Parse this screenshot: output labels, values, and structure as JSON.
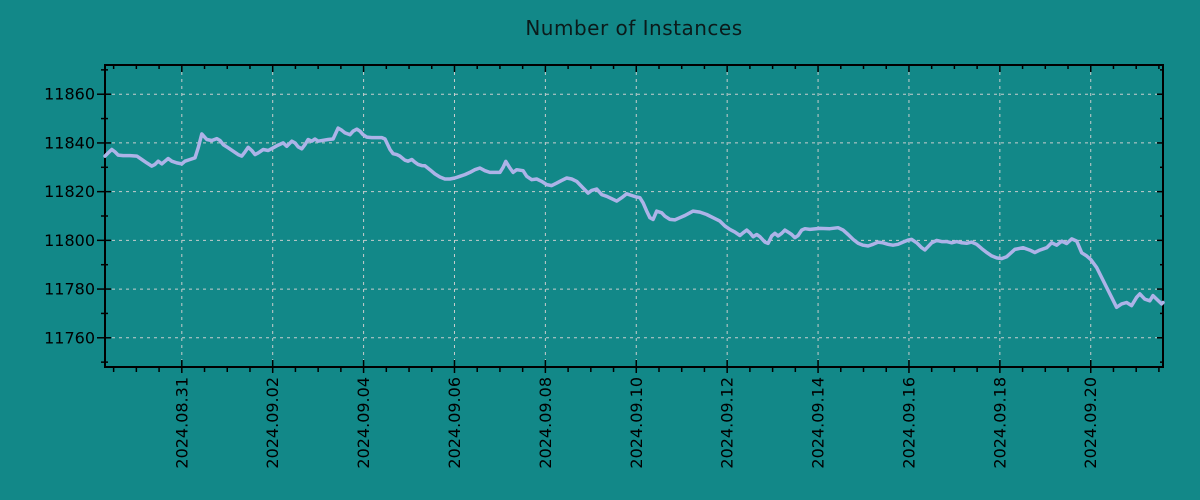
{
  "colors": {
    "background": "#128888",
    "line": "#adb3e8",
    "grid": "#c8cdcd",
    "frame": "#000000",
    "title_text": "#0b1b1b",
    "tick_text": "#000000"
  },
  "chart_data": {
    "type": "line",
    "title": "Number of Instances",
    "grid": {
      "dashed": true,
      "legend": "none"
    },
    "x_axis": {
      "tick_labels": [
        "2024.08.31",
        "2024.09.02",
        "2024.09.04",
        "2024.09.06",
        "2024.09.08",
        "2024.09.10",
        "2024.09.12",
        "2024.09.14",
        "2024.09.16",
        "2024.09.18",
        "2024.09.20"
      ],
      "tick_positions": [
        1.69,
        3.69,
        5.69,
        7.69,
        9.69,
        11.69,
        13.69,
        15.69,
        17.69,
        19.69,
        21.69
      ],
      "minor_tick_start": 0.19,
      "minor_tick_step": 0.5,
      "domain": [
        0,
        23.28
      ]
    },
    "y_axis": {
      "tick_values": [
        11760,
        11780,
        11800,
        11820,
        11840,
        11860
      ],
      "minor_tick_step": 10,
      "domain": [
        11748,
        11872
      ]
    },
    "series": [
      {
        "name": "instances",
        "points": [
          [
            0.0,
            11834.6
          ],
          [
            0.07,
            11835.9
          ],
          [
            0.15,
            11837.3
          ],
          [
            0.22,
            11836.3
          ],
          [
            0.29,
            11835.0
          ],
          [
            0.4,
            11834.8
          ],
          [
            0.55,
            11834.8
          ],
          [
            0.7,
            11834.6
          ],
          [
            0.81,
            11833.2
          ],
          [
            0.92,
            11831.8
          ],
          [
            1.03,
            11830.5
          ],
          [
            1.1,
            11831.2
          ],
          [
            1.17,
            11832.5
          ],
          [
            1.25,
            11831.4
          ],
          [
            1.32,
            11832.5
          ],
          [
            1.39,
            11833.6
          ],
          [
            1.47,
            11832.5
          ],
          [
            1.58,
            11831.8
          ],
          [
            1.69,
            11831.4
          ],
          [
            1.76,
            11832.5
          ],
          [
            1.87,
            11833.2
          ],
          [
            1.98,
            11833.9
          ],
          [
            2.05,
            11838.0
          ],
          [
            2.13,
            11843.7
          ],
          [
            2.24,
            11841.4
          ],
          [
            2.35,
            11841.0
          ],
          [
            2.46,
            11841.8
          ],
          [
            2.53,
            11841.0
          ],
          [
            2.6,
            11839.3
          ],
          [
            2.71,
            11838.0
          ],
          [
            2.82,
            11836.6
          ],
          [
            2.93,
            11835.2
          ],
          [
            3.01,
            11834.6
          ],
          [
            3.08,
            11836.3
          ],
          [
            3.15,
            11838.2
          ],
          [
            3.23,
            11836.9
          ],
          [
            3.3,
            11835.2
          ],
          [
            3.37,
            11835.9
          ],
          [
            3.48,
            11837.3
          ],
          [
            3.59,
            11836.9
          ],
          [
            3.7,
            11838.0
          ],
          [
            3.81,
            11839.1
          ],
          [
            3.92,
            11840.0
          ],
          [
            4.0,
            11838.6
          ],
          [
            4.11,
            11840.7
          ],
          [
            4.18,
            11840.0
          ],
          [
            4.25,
            11838.4
          ],
          [
            4.33,
            11837.6
          ],
          [
            4.4,
            11839.3
          ],
          [
            4.47,
            11841.4
          ],
          [
            4.55,
            11840.7
          ],
          [
            4.62,
            11841.6
          ],
          [
            4.69,
            11840.7
          ],
          [
            4.8,
            11841.1
          ],
          [
            4.91,
            11841.4
          ],
          [
            5.02,
            11841.6
          ],
          [
            5.13,
            11846.1
          ],
          [
            5.21,
            11845.2
          ],
          [
            5.28,
            11844.1
          ],
          [
            5.39,
            11843.4
          ],
          [
            5.46,
            11844.8
          ],
          [
            5.54,
            11845.7
          ],
          [
            5.61,
            11844.8
          ],
          [
            5.68,
            11843.4
          ],
          [
            5.76,
            11842.4
          ],
          [
            5.87,
            11842.2
          ],
          [
            5.98,
            11842.2
          ],
          [
            6.09,
            11842.2
          ],
          [
            6.16,
            11841.6
          ],
          [
            6.27,
            11837.3
          ],
          [
            6.34,
            11835.6
          ],
          [
            6.42,
            11835.2
          ],
          [
            6.49,
            11834.6
          ],
          [
            6.6,
            11832.9
          ],
          [
            6.67,
            11832.5
          ],
          [
            6.75,
            11833.2
          ],
          [
            6.82,
            11832.1
          ],
          [
            6.89,
            11831.2
          ],
          [
            6.97,
            11830.7
          ],
          [
            7.04,
            11830.6
          ],
          [
            7.15,
            11829.0
          ],
          [
            7.26,
            11827.3
          ],
          [
            7.37,
            11826.0
          ],
          [
            7.48,
            11825.2
          ],
          [
            7.59,
            11825.2
          ],
          [
            7.7,
            11825.6
          ],
          [
            7.81,
            11826.3
          ],
          [
            7.92,
            11827.0
          ],
          [
            8.03,
            11827.9
          ],
          [
            8.14,
            11829.0
          ],
          [
            8.25,
            11829.7
          ],
          [
            8.36,
            11828.6
          ],
          [
            8.47,
            11827.9
          ],
          [
            8.58,
            11827.9
          ],
          [
            8.69,
            11827.9
          ],
          [
            8.76,
            11830.0
          ],
          [
            8.82,
            11832.4
          ],
          [
            8.91,
            11829.7
          ],
          [
            8.98,
            11827.9
          ],
          [
            9.06,
            11829.0
          ],
          [
            9.13,
            11828.8
          ],
          [
            9.2,
            11828.6
          ],
          [
            9.28,
            11826.3
          ],
          [
            9.39,
            11824.9
          ],
          [
            9.5,
            11825.2
          ],
          [
            9.61,
            11824.2
          ],
          [
            9.72,
            11822.9
          ],
          [
            9.83,
            11822.5
          ],
          [
            9.94,
            11823.5
          ],
          [
            10.05,
            11824.6
          ],
          [
            10.16,
            11825.6
          ],
          [
            10.27,
            11825.2
          ],
          [
            10.38,
            11824.2
          ],
          [
            10.52,
            11821.5
          ],
          [
            10.63,
            11819.4
          ],
          [
            10.71,
            11820.5
          ],
          [
            10.82,
            11821.1
          ],
          [
            10.93,
            11818.8
          ],
          [
            11.04,
            11818.1
          ],
          [
            11.15,
            11817.1
          ],
          [
            11.26,
            11816.1
          ],
          [
            11.37,
            11817.5
          ],
          [
            11.48,
            11819.1
          ],
          [
            11.59,
            11818.4
          ],
          [
            11.68,
            11817.9
          ],
          [
            11.77,
            11817.5
          ],
          [
            11.84,
            11815.4
          ],
          [
            11.92,
            11812.0
          ],
          [
            11.99,
            11809.3
          ],
          [
            12.06,
            11808.6
          ],
          [
            12.14,
            11812.0
          ],
          [
            12.25,
            11811.3
          ],
          [
            12.32,
            11809.9
          ],
          [
            12.43,
            11808.6
          ],
          [
            12.54,
            11808.4
          ],
          [
            12.65,
            11809.3
          ],
          [
            12.76,
            11810.2
          ],
          [
            12.87,
            11811.3
          ],
          [
            12.94,
            11812.0
          ],
          [
            13.09,
            11811.6
          ],
          [
            13.24,
            11810.6
          ],
          [
            13.38,
            11809.3
          ],
          [
            13.53,
            11807.9
          ],
          [
            13.64,
            11805.9
          ],
          [
            13.75,
            11804.5
          ],
          [
            13.86,
            11803.4
          ],
          [
            13.97,
            11802.0
          ],
          [
            14.04,
            11803.1
          ],
          [
            14.12,
            11804.2
          ],
          [
            14.19,
            11803.1
          ],
          [
            14.26,
            11801.5
          ],
          [
            14.34,
            11802.4
          ],
          [
            14.41,
            11801.5
          ],
          [
            14.52,
            11799.3
          ],
          [
            14.59,
            11798.8
          ],
          [
            14.67,
            11801.8
          ],
          [
            14.74,
            11802.9
          ],
          [
            14.81,
            11801.8
          ],
          [
            14.89,
            11802.9
          ],
          [
            14.96,
            11804.2
          ],
          [
            15.03,
            11803.4
          ],
          [
            15.11,
            11802.4
          ],
          [
            15.18,
            11801.1
          ],
          [
            15.25,
            11802.0
          ],
          [
            15.33,
            11804.2
          ],
          [
            15.4,
            11804.8
          ],
          [
            15.51,
            11804.5
          ],
          [
            15.73,
            11804.9
          ],
          [
            15.95,
            11804.8
          ],
          [
            16.13,
            11805.2
          ],
          [
            16.24,
            11804.2
          ],
          [
            16.35,
            11802.4
          ],
          [
            16.46,
            11800.4
          ],
          [
            16.57,
            11798.8
          ],
          [
            16.68,
            11798.0
          ],
          [
            16.79,
            11797.7
          ],
          [
            16.9,
            11798.4
          ],
          [
            17.01,
            11799.3
          ],
          [
            17.12,
            11799.0
          ],
          [
            17.23,
            11798.4
          ],
          [
            17.34,
            11798.0
          ],
          [
            17.45,
            11798.4
          ],
          [
            17.56,
            11799.3
          ],
          [
            17.67,
            11800.1
          ],
          [
            17.75,
            11800.4
          ],
          [
            17.86,
            11799.0
          ],
          [
            17.97,
            11797.0
          ],
          [
            18.04,
            11796.1
          ],
          [
            18.11,
            11797.4
          ],
          [
            18.19,
            11799.0
          ],
          [
            18.3,
            11800.0
          ],
          [
            18.41,
            11799.5
          ],
          [
            18.52,
            11799.5
          ],
          [
            18.63,
            11799.0
          ],
          [
            18.74,
            11799.5
          ],
          [
            18.85,
            11799.0
          ],
          [
            18.96,
            11798.8
          ],
          [
            19.07,
            11799.3
          ],
          [
            19.18,
            11798.4
          ],
          [
            19.29,
            11796.6
          ],
          [
            19.4,
            11795.0
          ],
          [
            19.51,
            11793.6
          ],
          [
            19.62,
            11792.8
          ],
          [
            19.73,
            11792.5
          ],
          [
            19.84,
            11793.3
          ],
          [
            20.02,
            11796.3
          ],
          [
            20.2,
            11797.0
          ],
          [
            20.35,
            11796.0
          ],
          [
            20.46,
            11795.0
          ],
          [
            20.57,
            11796.0
          ],
          [
            20.72,
            11797.0
          ],
          [
            20.83,
            11799.0
          ],
          [
            20.94,
            11798.0
          ],
          [
            21.05,
            11799.7
          ],
          [
            21.16,
            11798.7
          ],
          [
            21.27,
            11800.6
          ],
          [
            21.38,
            11799.7
          ],
          [
            21.49,
            11794.9
          ],
          [
            21.6,
            11793.6
          ],
          [
            21.69,
            11792.2
          ],
          [
            21.82,
            11788.9
          ],
          [
            21.93,
            11784.8
          ],
          [
            22.04,
            11780.7
          ],
          [
            22.15,
            11776.6
          ],
          [
            22.26,
            11772.5
          ],
          [
            22.37,
            11773.9
          ],
          [
            22.48,
            11774.5
          ],
          [
            22.59,
            11773.2
          ],
          [
            22.7,
            11776.6
          ],
          [
            22.77,
            11778.0
          ],
          [
            22.88,
            11775.9
          ],
          [
            22.99,
            11775.2
          ],
          [
            23.06,
            11777.3
          ],
          [
            23.14,
            11775.9
          ],
          [
            23.25,
            11773.9
          ],
          [
            23.28,
            11774.5
          ]
        ]
      }
    ]
  }
}
